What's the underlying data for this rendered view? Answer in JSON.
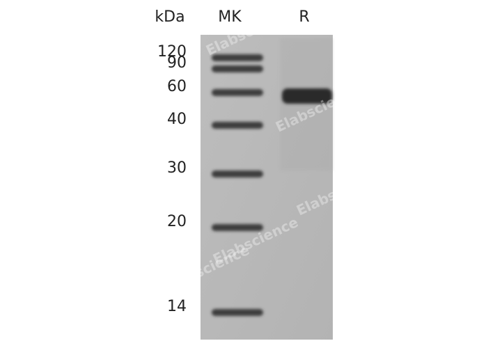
{
  "header": {
    "unit": "kDa",
    "lanes": [
      "MK",
      "R"
    ]
  },
  "markers": [
    "120",
    "90",
    "60",
    "40",
    "30",
    "20",
    "14"
  ],
  "watermark": "Elabscience"
}
